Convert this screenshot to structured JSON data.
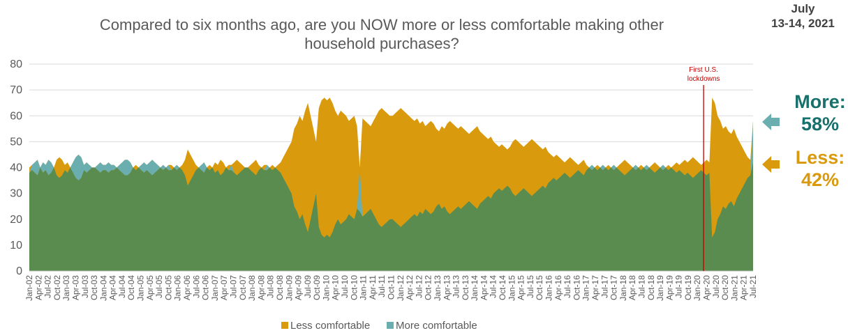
{
  "title": "Compared to six months ago, are you NOW more or less comfortable making other household purchases?",
  "date": {
    "line1": "July",
    "line2": "13-14, 2021"
  },
  "callouts": {
    "more": {
      "label": "More:",
      "value": "58%"
    },
    "less": {
      "label": "Less:",
      "value": "42%"
    }
  },
  "colors": {
    "less": "#d99a0e",
    "more": "#6baeb0",
    "base": "#5a8c50",
    "annotation": "#c00000",
    "arrow_more": "#6baeb0",
    "arrow_less": "#d99a0e"
  },
  "chart_data": {
    "type": "area",
    "title": "Compared to six months ago, are you NOW more or less comfortable making other household purchases?",
    "ylim": [
      0,
      80
    ],
    "yticks": [
      0,
      10,
      20,
      30,
      40,
      50,
      60,
      70,
      80
    ],
    "x_start": "2002-01",
    "x_end": "2021-07",
    "xtick_labels": [
      "Jan-02",
      "Apr-02",
      "Jul-02",
      "Oct-02",
      "Jan-03",
      "Apr-03",
      "Jul-03",
      "Oct-03",
      "Jan-04",
      "Apr-04",
      "Jul-04",
      "Oct-04",
      "Jan-05",
      "Apr-05",
      "Jul-05",
      "Oct-05",
      "Jan-06",
      "Apr-06",
      "Jul-06",
      "Oct-06",
      "Jan-07",
      "Apr-07",
      "Jul-07",
      "Oct-07",
      "Jan-08",
      "Apr-08",
      "Jul-08",
      "Oct-08",
      "Jan-09",
      "Apr-09",
      "Jul-09",
      "Oct-09",
      "Jan-10",
      "Apr-10",
      "Jul-10",
      "Oct-10",
      "Jan-11",
      "Apr-11",
      "Jul-11",
      "Oct-11",
      "Jan-12",
      "Apr-12",
      "Jul-12",
      "Oct-12",
      "Jan-13",
      "Apr-13",
      "Jul-13",
      "Oct-13",
      "Jan-14",
      "Apr-14",
      "Jul-14",
      "Oct-14",
      "Jan-15",
      "Apr-15",
      "Jul-15",
      "Oct-15",
      "Jan-16",
      "Apr-16",
      "Jul-16",
      "Oct-16",
      "Jan-17",
      "Apr-17",
      "Jul-17",
      "Oct-17",
      "Jan-18",
      "Apr-18",
      "Jul-18",
      "Oct-18",
      "Jan-19",
      "Apr-19",
      "Jul-19",
      "Oct-19",
      "Jan-20",
      "Apr-20",
      "Jul-20",
      "Oct-20",
      "Jan-21",
      "Apr-21",
      "Jul-21"
    ],
    "series": [
      {
        "name": "Less comfortable",
        "values": [
          40,
          39,
          38,
          37,
          40,
          38,
          39,
          37,
          38,
          40,
          43,
          44,
          43,
          41,
          42,
          40,
          38,
          36,
          35,
          36,
          39,
          38,
          39,
          40,
          40,
          39,
          38,
          39,
          39,
          38,
          39,
          39,
          40,
          39,
          38,
          37,
          37,
          38,
          40,
          41,
          40,
          39,
          38,
          39,
          38,
          37,
          38,
          39,
          40,
          39,
          40,
          39,
          41,
          40,
          39,
          40,
          41,
          43,
          47,
          45,
          43,
          41,
          40,
          39,
          38,
          40,
          41,
          40,
          42,
          41,
          43,
          42,
          40,
          41,
          39,
          42,
          43,
          42,
          41,
          40,
          40,
          41,
          42,
          43,
          41,
          40,
          41,
          39,
          40,
          41,
          40,
          41,
          42,
          44,
          46,
          48,
          50,
          55,
          57,
          60,
          58,
          62,
          65,
          60,
          55,
          50,
          63,
          66,
          67,
          66,
          67,
          65,
          62,
          60,
          62,
          61,
          60,
          58,
          59,
          60,
          56,
          23,
          59,
          58,
          57,
          56,
          58,
          60,
          62,
          63,
          62,
          61,
          60,
          60,
          61,
          62,
          63,
          62,
          61,
          60,
          59,
          58,
          59,
          57,
          58,
          56,
          57,
          58,
          57,
          55,
          54,
          56,
          55,
          57,
          58,
          57,
          56,
          55,
          56,
          55,
          54,
          53,
          54,
          55,
          56,
          54,
          53,
          52,
          51,
          52,
          50,
          49,
          48,
          49,
          48,
          47,
          48,
          50,
          51,
          50,
          49,
          48,
          49,
          50,
          51,
          50,
          49,
          48,
          47,
          48,
          46,
          45,
          44,
          45,
          44,
          43,
          42,
          43,
          44,
          43,
          42,
          41,
          42,
          43,
          41,
          40,
          39,
          40,
          41,
          40,
          39,
          40,
          41,
          40,
          39,
          40,
          41,
          42,
          43,
          42,
          41,
          40,
          39,
          40,
          41,
          40,
          39,
          40,
          41,
          42,
          41,
          40,
          39,
          40,
          41,
          40,
          41,
          42,
          41,
          42,
          43,
          42,
          43,
          44,
          43,
          42,
          41,
          42,
          43,
          42,
          67,
          65,
          60,
          58,
          55,
          56,
          54,
          53,
          55,
          52,
          50,
          48,
          46,
          44,
          43,
          42
        ]
      },
      {
        "name": "More comfortable",
        "values": [
          38,
          41,
          42,
          43,
          40,
          42,
          41,
          43,
          42,
          40,
          37,
          36,
          37,
          39,
          38,
          40,
          42,
          44,
          45,
          44,
          41,
          42,
          41,
          40,
          40,
          41,
          42,
          41,
          41,
          42,
          41,
          41,
          40,
          41,
          42,
          43,
          43,
          42,
          40,
          39,
          40,
          41,
          42,
          41,
          42,
          43,
          42,
          41,
          40,
          41,
          40,
          41,
          39,
          40,
          41,
          40,
          39,
          37,
          33,
          35,
          37,
          39,
          40,
          41,
          42,
          40,
          39,
          40,
          38,
          39,
          37,
          38,
          40,
          39,
          41,
          38,
          37,
          38,
          39,
          40,
          40,
          39,
          38,
          37,
          39,
          40,
          39,
          41,
          40,
          39,
          40,
          39,
          38,
          36,
          34,
          32,
          30,
          25,
          23,
          20,
          22,
          18,
          15,
          20,
          25,
          30,
          17,
          14,
          13,
          14,
          13,
          15,
          18,
          20,
          18,
          19,
          20,
          22,
          21,
          20,
          24,
          40,
          21,
          22,
          23,
          24,
          22,
          20,
          18,
          17,
          18,
          19,
          20,
          20,
          19,
          18,
          17,
          18,
          19,
          20,
          21,
          22,
          21,
          23,
          22,
          24,
          23,
          22,
          23,
          25,
          26,
          24,
          25,
          23,
          22,
          23,
          24,
          25,
          24,
          25,
          26,
          27,
          26,
          25,
          24,
          26,
          27,
          28,
          29,
          28,
          30,
          31,
          32,
          31,
          32,
          33,
          32,
          30,
          29,
          30,
          31,
          32,
          31,
          30,
          29,
          30,
          31,
          32,
          33,
          32,
          34,
          35,
          36,
          35,
          36,
          37,
          38,
          37,
          36,
          37,
          38,
          39,
          38,
          37,
          39,
          40,
          41,
          40,
          39,
          40,
          41,
          40,
          39,
          40,
          41,
          40,
          39,
          38,
          37,
          38,
          39,
          40,
          41,
          40,
          39,
          40,
          41,
          40,
          39,
          38,
          39,
          40,
          41,
          40,
          39,
          40,
          39,
          38,
          39,
          38,
          37,
          38,
          37,
          36,
          37,
          38,
          39,
          38,
          37,
          38,
          13,
          15,
          20,
          22,
          25,
          24,
          26,
          27,
          25,
          28,
          30,
          32,
          34,
          36,
          37,
          58
        ]
      }
    ],
    "legend": [
      "Less comfortable",
      "More comfortable"
    ],
    "legend_position": "bottom",
    "annotation": {
      "text_line1": "First U.S.",
      "text_line2": "lockdowns",
      "x": "2020-03"
    }
  }
}
